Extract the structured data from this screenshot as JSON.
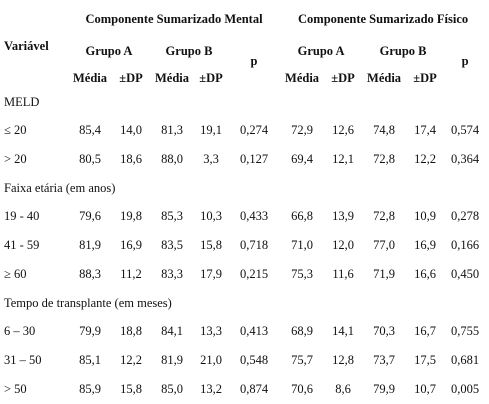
{
  "header": {
    "variable": "Variável",
    "mental": "Componente Sumarizado Mental",
    "fisico": "Componente Sumarizado Físico",
    "grupo_a": "Grupo A",
    "grupo_b": "Grupo B",
    "p": "p",
    "media": "Média",
    "dp": "±DP"
  },
  "sections": [
    {
      "title": "MELD",
      "rows": [
        {
          "label": "≤ 20",
          "values": [
            "85,4",
            "14,0",
            "81,3",
            "19,1",
            "0,274",
            "72,9",
            "12,6",
            "74,8",
            "17,4",
            "0,574"
          ]
        },
        {
          "label": "> 20",
          "values": [
            "80,5",
            "18,6",
            "88,0",
            "3,3",
            "0,127",
            "69,4",
            "12,1",
            "72,8",
            "12,2",
            "0,364"
          ]
        }
      ]
    },
    {
      "title": "Faixa etária (em anos)",
      "rows": [
        {
          "label": "19 - 40",
          "values": [
            "79,6",
            "19,8",
            "85,3",
            "10,3",
            "0,433",
            "66,8",
            "13,9",
            "72,8",
            "10,9",
            "0,278"
          ]
        },
        {
          "label": "41 - 59",
          "values": [
            "81,9",
            "16,9",
            "83,5",
            "15,8",
            "0,718",
            "71,0",
            "12,0",
            "77,0",
            "16,9",
            "0,166"
          ]
        },
        {
          "label": "≥ 60",
          "values": [
            "88,3",
            "11,2",
            "83,3",
            "17,9",
            "0,215",
            "75,3",
            "11,6",
            "71,9",
            "16,6",
            "0,450"
          ]
        }
      ]
    },
    {
      "title": "Tempo de transplante (em meses)",
      "rows": [
        {
          "label": "6 – 30",
          "values": [
            "79,9",
            "18,8",
            "84,1",
            "13,3",
            "0,413",
            "68,9",
            "14,1",
            "70,3",
            "16,7",
            "0,755"
          ]
        },
        {
          "label": "31 – 50",
          "values": [
            "85,1",
            "12,2",
            "81,9",
            "21,0",
            "0,548",
            "75,7",
            "12,8",
            "73,7",
            "17,5",
            "0,681"
          ]
        },
        {
          "label": "> 50",
          "values": [
            "85,9",
            "15,8",
            "85,0",
            "13,2",
            "0,874",
            "70,6",
            "8,6",
            "79,9",
            "10,7",
            "0,005"
          ]
        }
      ]
    }
  ]
}
